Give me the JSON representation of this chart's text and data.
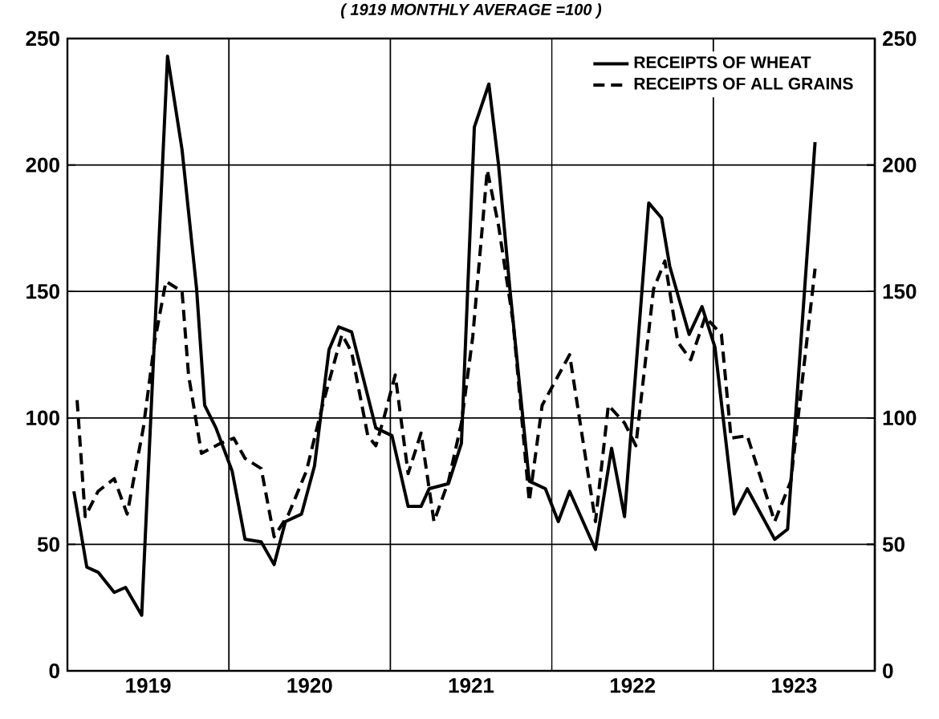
{
  "chart_data": {
    "type": "line",
    "title": "( 1919 MONTHLY AVERAGE =100 )",
    "xlim": [
      1919,
      1924
    ],
    "xticks": [
      {
        "value": 1919.5,
        "label": "1919"
      },
      {
        "value": 1920.5,
        "label": "1920"
      },
      {
        "value": 1921.5,
        "label": "1921"
      },
      {
        "value": 1922.5,
        "label": "1922"
      },
      {
        "value": 1923.5,
        "label": "1923"
      }
    ],
    "ylim": [
      0,
      250
    ],
    "yticks": [
      0,
      50,
      100,
      150,
      200,
      250
    ],
    "y2lim": [
      0,
      250
    ],
    "y2ticks": [
      0,
      50,
      100,
      150,
      200,
      250
    ],
    "grid": "y",
    "legend": "top right",
    "marker": "none",
    "ref_lines": [
      {
        "axis": "x",
        "value": 1920
      },
      {
        "axis": "x",
        "value": 1921
      },
      {
        "axis": "x",
        "value": 1922
      },
      {
        "axis": "x",
        "value": 1923
      }
    ],
    "series": [
      {
        "name": "RECEIPTS OF WHEAT",
        "color": "#000000",
        "line_style": "solid",
        "x": [
          1919.04,
          1919.12,
          1919.19,
          1919.29,
          1919.36,
          1919.46,
          1919.48,
          1919.62,
          1919.71,
          1919.8,
          1919.85,
          1919.92,
          1920.02,
          1920.1,
          1920.2,
          1920.28,
          1920.35,
          1920.45,
          1920.53,
          1920.62,
          1920.68,
          1920.76,
          1920.91,
          1921.01,
          1921.11,
          1921.19,
          1921.24,
          1921.36,
          1921.44,
          1921.52,
          1921.61,
          1921.67,
          1921.74,
          1921.86,
          1921.96,
          1922.04,
          1922.11,
          1922.27,
          1922.37,
          1922.45,
          1922.6,
          1922.68,
          1922.73,
          1922.85,
          1922.93,
          1923.01,
          1923.13,
          1923.21,
          1923.38,
          1923.46,
          1923.63
        ],
        "values": [
          71,
          41,
          39,
          31,
          33,
          22,
          50,
          243,
          206,
          151,
          105,
          96,
          79,
          52,
          51,
          42,
          59,
          62,
          81,
          127,
          136,
          134,
          96,
          93,
          65,
          65,
          72,
          74,
          90,
          215,
          232,
          200,
          151,
          75,
          72,
          59,
          71,
          48,
          88,
          61,
          185,
          179,
          160,
          133,
          144,
          128,
          62,
          72,
          52,
          56,
          209
        ]
      },
      {
        "name": "RECEIPTS OF ALL GRAINS",
        "color": "#000000",
        "line_style": "dashed",
        "x": [
          1919.06,
          1919.11,
          1919.19,
          1919.29,
          1919.37,
          1919.47,
          1919.54,
          1919.61,
          1919.71,
          1919.75,
          1919.83,
          1919.95,
          1920.03,
          1920.1,
          1920.2,
          1920.28,
          1920.37,
          1920.48,
          1920.58,
          1920.7,
          1920.76,
          1920.86,
          1920.91,
          1920.96,
          1921.03,
          1921.11,
          1921.19,
          1921.27,
          1921.36,
          1921.44,
          1921.51,
          1921.6,
          1921.67,
          1921.76,
          1921.86,
          1921.94,
          1922.11,
          1922.27,
          1922.35,
          1922.45,
          1922.52,
          1922.63,
          1922.7,
          1922.78,
          1922.86,
          1922.95,
          1923.05,
          1923.11,
          1923.21,
          1923.38,
          1923.48,
          1923.63
        ],
        "values": [
          107,
          61,
          71,
          76,
          62,
          96,
          130,
          154,
          150,
          117,
          86,
          90,
          92,
          84,
          80,
          53,
          62,
          79,
          105,
          133,
          126,
          93,
          89,
          100,
          117,
          78,
          94,
          59,
          75,
          98,
          132,
          198,
          176,
          138,
          67,
          105,
          125,
          59,
          105,
          98,
          89,
          151,
          162,
          130,
          123,
          140,
          133,
          92,
          93,
          59,
          75,
          159
        ]
      }
    ]
  }
}
